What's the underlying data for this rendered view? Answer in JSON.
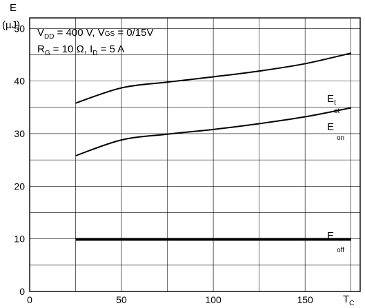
{
  "chart_data": {
    "type": "line",
    "xlabel": "T",
    "xlabel_sub": "C",
    "ylabel": "E",
    "ylabel_unit": "(µJ)",
    "xlim": [
      0,
      180
    ],
    "ylim": [
      0,
      52
    ],
    "xticks": [
      0,
      50,
      100,
      150
    ],
    "yticks": [
      0,
      10,
      20,
      30,
      40,
      50
    ],
    "grid": true,
    "conditions": {
      "line1": {
        "v": "V",
        "dd": "DD",
        "rest": " = 400 V, V",
        "gs": "GS",
        "rest2": " = 0/15V"
      },
      "line2": {
        "r": "R",
        "g": "G",
        "rest": " = 10 Ω, I",
        "d": "D",
        "rest2": " = 5 A"
      }
    },
    "series": [
      {
        "name": "E_tot",
        "label_main": "E",
        "label_sub1": "t",
        "label_sub2": "ot",
        "x": [
          25,
          50,
          75,
          100,
          125,
          150,
          175
        ],
        "y": [
          35.8,
          38.7,
          39.8,
          40.8,
          41.9,
          43.3,
          45.3
        ],
        "stroke_width": 2
      },
      {
        "name": "E_on",
        "label_main": "E",
        "label_sub": "on",
        "x": [
          25,
          50,
          75,
          100,
          125,
          150,
          175
        ],
        "y": [
          25.8,
          28.8,
          29.9,
          30.8,
          31.9,
          33.2,
          34.9
        ],
        "stroke_width": 2
      },
      {
        "name": "E_off",
        "label_main": "E",
        "label_sub": "off",
        "x": [
          25,
          175
        ],
        "y": [
          9.9,
          9.9
        ],
        "stroke_width": 4
      }
    ]
  }
}
